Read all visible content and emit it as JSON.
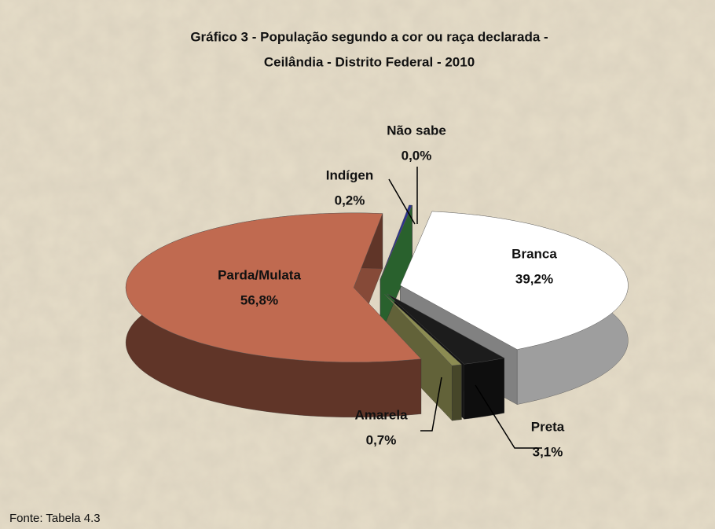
{
  "chart_data": {
    "type": "pie",
    "title": [
      "Gráfico 3 - População segundo a cor ou raça declarada -",
      "Ceilândia - Distrito Federal - 2010"
    ],
    "categories": [
      "Branca",
      "Preta",
      "Amarela",
      "Parda/Mulata",
      "Indígen",
      "Não sabe"
    ],
    "values": [
      39.2,
      3.1,
      0.7,
      56.8,
      0.2,
      0.0
    ],
    "value_labels": [
      "39,2%",
      "3,1%",
      "0,7%",
      "56,8%",
      "0,2%",
      "0,0%"
    ],
    "colors": [
      "#ffffff",
      "#1c1c1c",
      "#8c8c52",
      "#c06a50",
      "#2b3490",
      "#3a8a40"
    ],
    "source": "Fonte: Tabela 4.3"
  }
}
